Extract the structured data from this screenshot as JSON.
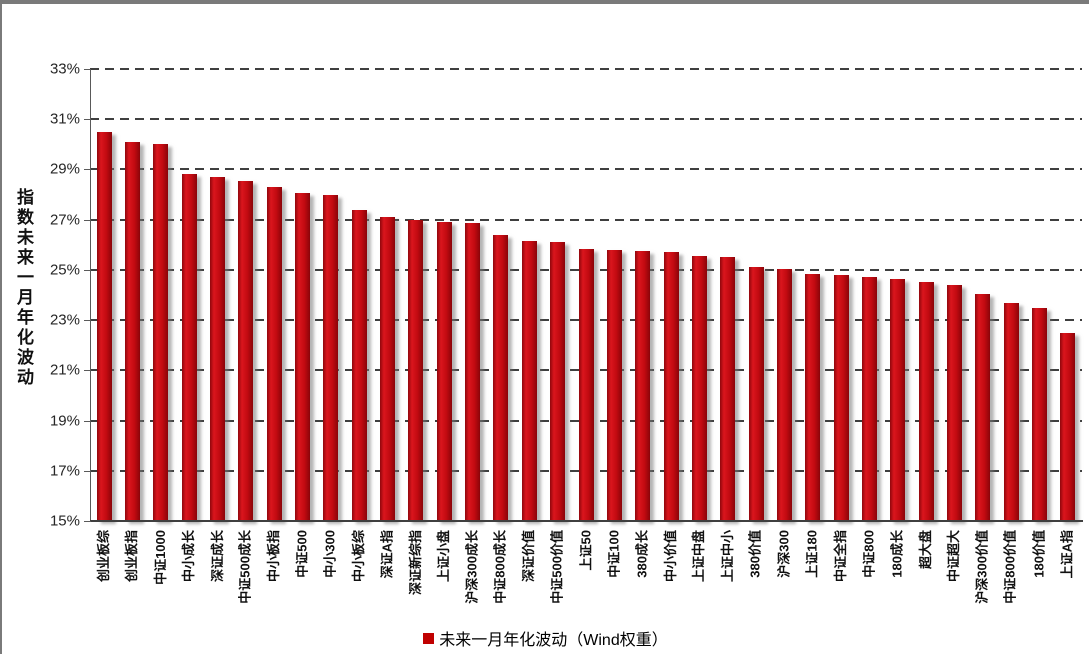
{
  "chart_data": {
    "type": "bar",
    "title": "",
    "y_axis_title": "指数未来一月年化波动",
    "legend_label": "未来一月年化波动（Wind权重）",
    "legend_position": "bottom-center",
    "bar_color": "#c00000",
    "gridline_style": "horizontal-dashed",
    "gridline_color": "#3f3f3f",
    "ylim": [
      15,
      33
    ],
    "ytick_step": 2,
    "y_ticks": [
      {
        "value": 15,
        "label": "15%"
      },
      {
        "value": 17,
        "label": "17%"
      },
      {
        "value": 19,
        "label": "19%"
      },
      {
        "value": 21,
        "label": "21%"
      },
      {
        "value": 23,
        "label": "23%"
      },
      {
        "value": 25,
        "label": "25%"
      },
      {
        "value": 27,
        "label": "27%"
      },
      {
        "value": 29,
        "label": "29%"
      },
      {
        "value": 31,
        "label": "31%"
      },
      {
        "value": 33,
        "label": "33%"
      }
    ],
    "categories": [
      "创业板综",
      "创业板指",
      "中证1000",
      "中小成长",
      "深证成长",
      "中证500成长",
      "中小板指",
      "中证500",
      "中小300",
      "中小板综",
      "深证A指",
      "深证新综指",
      "上证小盘",
      "沪深300成长",
      "中证800成长",
      "深证价值",
      "中证500价值",
      "上证50",
      "中证100",
      "380成长",
      "中小价值",
      "上证中盘",
      "上证中小",
      "380价值",
      "沪深300",
      "上证180",
      "中证全指",
      "中证800",
      "180成长",
      "超大盘",
      "中证超大",
      "沪深300价值",
      "中证800价值",
      "180价值",
      "上证A指"
    ],
    "values": [
      30.5,
      30.1,
      30.0,
      28.8,
      28.7,
      28.55,
      28.3,
      28.05,
      28.0,
      27.4,
      27.1,
      27.0,
      26.9,
      26.85,
      26.4,
      26.15,
      26.1,
      25.85,
      25.8,
      25.75,
      25.7,
      25.55,
      25.5,
      25.1,
      25.05,
      24.85,
      24.8,
      24.7,
      24.65,
      24.5,
      24.4,
      24.05,
      23.7,
      23.5,
      22.5
    ]
  }
}
